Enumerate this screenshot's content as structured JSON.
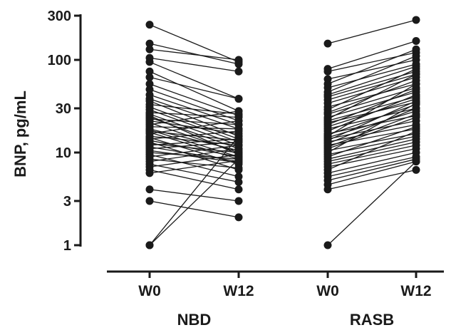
{
  "chart_data": {
    "type": "scatter",
    "subtype": "paired before-after plot",
    "ylabel": "BNP, pg/mL",
    "yscale": "log",
    "ylim": [
      1,
      300
    ],
    "yticks": [
      1,
      3,
      10,
      30,
      100,
      300
    ],
    "ytick_labels": [
      "1",
      "3",
      "10",
      "30",
      "100",
      "300"
    ],
    "timepoints": [
      "W0",
      "W12",
      "W0",
      "W12"
    ],
    "groups": [
      {
        "label": "NBD",
        "pairs": [
          [
            240,
            95
          ],
          [
            150,
            90
          ],
          [
            130,
            100
          ],
          [
            105,
            75
          ],
          [
            95,
            38
          ],
          [
            75,
            28
          ],
          [
            65,
            38
          ],
          [
            55,
            25
          ],
          [
            48,
            22
          ],
          [
            42,
            20
          ],
          [
            38,
            18
          ],
          [
            36,
            15
          ],
          [
            33,
            26
          ],
          [
            31,
            14
          ],
          [
            29,
            13
          ],
          [
            27,
            24
          ],
          [
            26,
            12
          ],
          [
            25,
            9.5
          ],
          [
            24,
            11
          ],
          [
            23,
            20
          ],
          [
            22,
            16
          ],
          [
            21,
            10
          ],
          [
            20,
            28
          ],
          [
            19,
            18
          ],
          [
            18,
            10.5
          ],
          [
            17.5,
            9
          ],
          [
            17,
            13.5
          ],
          [
            16.5,
            8.5
          ],
          [
            16,
            22
          ],
          [
            15,
            12
          ],
          [
            14.5,
            7.5
          ],
          [
            14,
            17
          ],
          [
            13.5,
            9
          ],
          [
            13,
            6.5
          ],
          [
            12.5,
            10
          ],
          [
            12,
            14
          ],
          [
            11.5,
            8
          ],
          [
            11,
            13
          ],
          [
            10.5,
            7.8
          ],
          [
            10,
            8.5
          ],
          [
            9.5,
            5.5
          ],
          [
            9,
            12
          ],
          [
            8.5,
            6.8
          ],
          [
            8,
            11
          ],
          [
            7.5,
            4.8
          ],
          [
            7,
            9.5
          ],
          [
            6.5,
            4
          ],
          [
            6,
            8.2
          ],
          [
            4,
            3
          ],
          [
            3,
            2
          ],
          [
            1,
            8.5
          ],
          [
            1,
            15
          ]
        ]
      },
      {
        "label": "RASB",
        "pairs": [
          [
            150,
            270
          ],
          [
            80,
            160
          ],
          [
            75,
            120
          ],
          [
            62,
            100
          ],
          [
            55,
            130
          ],
          [
            50,
            90
          ],
          [
            45,
            110
          ],
          [
            42,
            85
          ],
          [
            40,
            75
          ],
          [
            37,
            70
          ],
          [
            34,
            65
          ],
          [
            31,
            55
          ],
          [
            29,
            80
          ],
          [
            27,
            60
          ],
          [
            26,
            50
          ],
          [
            24,
            45
          ],
          [
            23,
            70
          ],
          [
            22,
            40
          ],
          [
            21,
            35
          ],
          [
            20,
            48
          ],
          [
            19,
            38
          ],
          [
            18,
            30
          ],
          [
            17,
            42
          ],
          [
            16,
            25
          ],
          [
            15.5,
            33
          ],
          [
            15,
            55
          ],
          [
            14.5,
            28
          ],
          [
            14,
            22
          ],
          [
            13.5,
            36
          ],
          [
            13,
            20
          ],
          [
            12.5,
            30
          ],
          [
            12,
            18
          ],
          [
            11.5,
            26
          ],
          [
            11,
            24
          ],
          [
            10.5,
            16
          ],
          [
            10,
            34
          ],
          [
            9.5,
            15
          ],
          [
            9,
            19
          ],
          [
            8.5,
            14
          ],
          [
            8,
            13
          ],
          [
            7.5,
            12
          ],
          [
            7,
            11
          ],
          [
            6.5,
            17
          ],
          [
            6,
            10
          ],
          [
            5.5,
            9
          ],
          [
            5,
            8.5
          ],
          [
            4.5,
            8
          ],
          [
            4,
            6.5
          ],
          [
            1,
            8
          ]
        ]
      }
    ],
    "grid": false,
    "legend": "none",
    "colors": {
      "marker": "#1a1a1a",
      "line": "#1a1a1a",
      "axis": "#1a1a1a"
    }
  }
}
